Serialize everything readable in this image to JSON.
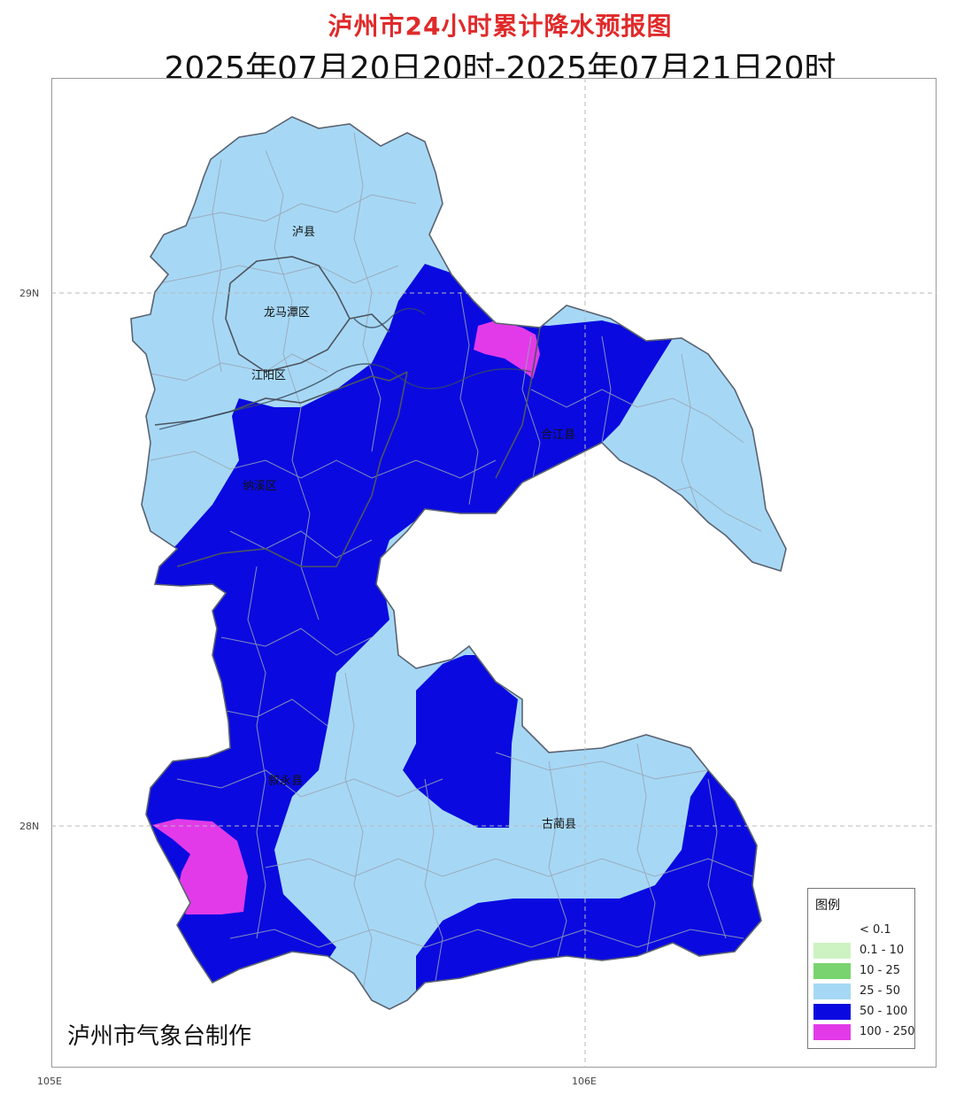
{
  "title": "泸州市24小时累计降水预报图",
  "subtitle": "2025年07月20日20时-2025年07月21日20时",
  "credit": "泸州市气象台制作",
  "axes": {
    "lat_labels": [
      "29N",
      "28N"
    ],
    "lon_labels": [
      "105E",
      "106E"
    ]
  },
  "places": {
    "luxian": "泸县",
    "longmatan": "龙马潭区",
    "jiangyang": "江阳区",
    "hejiang": "合江县",
    "naxi": "纳溪区",
    "xuyong": "叙永县",
    "gulin": "古蔺县"
  },
  "legend": {
    "title": "图例",
    "items": [
      {
        "label": "< 0.1",
        "color": "#ffffff"
      },
      {
        "label": "0.1 - 10",
        "color": "#cdf2c2"
      },
      {
        "label": "10 - 25",
        "color": "#79d36e"
      },
      {
        "label": "25 - 50",
        "color": "#a6d8f5"
      },
      {
        "label": "50 - 100",
        "color": "#0a0ae0"
      },
      {
        "label": "100 - 250",
        "color": "#e23ae8"
      }
    ]
  }
}
